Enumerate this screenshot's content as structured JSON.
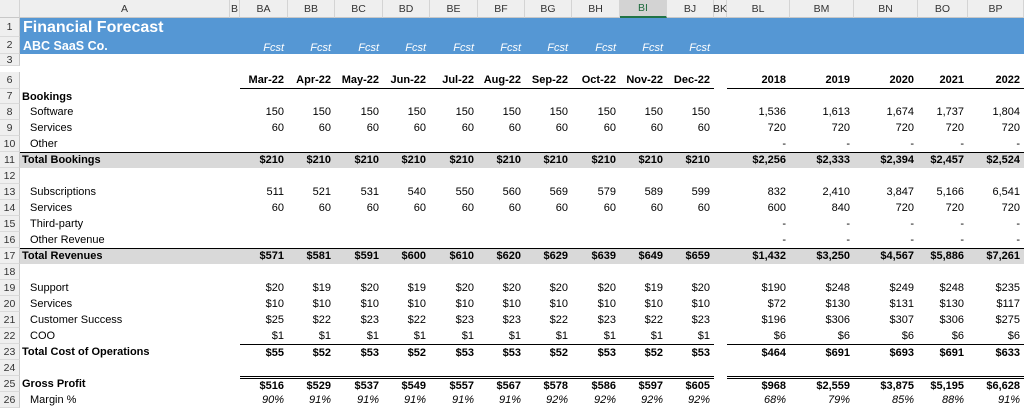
{
  "column_headers": [
    "A",
    "B",
    "BA",
    "BB",
    "BC",
    "BD",
    "BE",
    "BF",
    "BG",
    "BH",
    "BI",
    "BJ",
    "BK",
    "BL",
    "BM",
    "BN",
    "BO",
    "BP"
  ],
  "selected_column": "BI",
  "row_numbers": [
    1,
    2,
    3,
    6,
    7,
    8,
    9,
    10,
    11,
    12,
    13,
    14,
    15,
    16,
    17,
    18,
    19,
    20,
    21,
    22,
    23,
    24,
    25,
    26
  ],
  "header": {
    "title": "Financial Forecast",
    "company": "ABC SaaS Co.",
    "fcst": [
      "Fcst",
      "Fcst",
      "Fcst",
      "Fcst",
      "Fcst",
      "Fcst",
      "Fcst",
      "Fcst",
      "Fcst",
      "Fcst"
    ]
  },
  "period_headers": {
    "months": [
      "Mar-22",
      "Apr-22",
      "May-22",
      "Jun-22",
      "Jul-22",
      "Aug-22",
      "Sep-22",
      "Oct-22",
      "Nov-22",
      "Dec-22"
    ],
    "years": [
      "2018",
      "2019",
      "2020",
      "2021",
      "2022"
    ]
  },
  "rows": [
    {
      "row": 7,
      "label": "Bookings",
      "style": "section",
      "months": [],
      "years": []
    },
    {
      "row": 8,
      "label": "Software",
      "style": "item",
      "months": [
        "150",
        "150",
        "150",
        "150",
        "150",
        "150",
        "150",
        "150",
        "150",
        "150"
      ],
      "years": [
        "1,536",
        "1,613",
        "1,674",
        "1,737",
        "1,804"
      ]
    },
    {
      "row": 9,
      "label": "Services",
      "style": "item",
      "months": [
        "60",
        "60",
        "60",
        "60",
        "60",
        "60",
        "60",
        "60",
        "60",
        "60"
      ],
      "years": [
        "720",
        "720",
        "720",
        "720",
        "720"
      ]
    },
    {
      "row": 10,
      "label": "Other",
      "style": "item",
      "months": [],
      "years": [
        "-",
        "-",
        "-",
        "-",
        "-"
      ]
    },
    {
      "row": 11,
      "label": "Total Bookings",
      "style": "total",
      "months": [
        "$210",
        "$210",
        "$210",
        "$210",
        "$210",
        "$210",
        "$210",
        "$210",
        "$210",
        "$210"
      ],
      "years": [
        "$2,256",
        "$2,333",
        "$2,394",
        "$2,457",
        "$2,524"
      ]
    },
    {
      "row": 13,
      "label": "Subscriptions",
      "style": "item",
      "months": [
        "511",
        "521",
        "531",
        "540",
        "550",
        "560",
        "569",
        "579",
        "589",
        "599"
      ],
      "years": [
        "832",
        "2,410",
        "3,847",
        "5,166",
        "6,541"
      ]
    },
    {
      "row": 14,
      "label": "Services",
      "style": "item",
      "months": [
        "60",
        "60",
        "60",
        "60",
        "60",
        "60",
        "60",
        "60",
        "60",
        "60"
      ],
      "years": [
        "600",
        "840",
        "720",
        "720",
        "720"
      ]
    },
    {
      "row": 15,
      "label": "Third-party",
      "style": "item",
      "months": [],
      "years": [
        "-",
        "-",
        "-",
        "-",
        "-"
      ]
    },
    {
      "row": 16,
      "label": "Other Revenue",
      "style": "item",
      "months": [],
      "years": [
        "-",
        "-",
        "-",
        "-",
        "-"
      ]
    },
    {
      "row": 17,
      "label": "Total Revenues",
      "style": "total",
      "months": [
        "$571",
        "$581",
        "$591",
        "$600",
        "$610",
        "$620",
        "$629",
        "$639",
        "$649",
        "$659"
      ],
      "years": [
        "$1,432",
        "$3,250",
        "$4,567",
        "$5,886",
        "$7,261"
      ]
    },
    {
      "row": 19,
      "label": "Support",
      "style": "item",
      "months": [
        "$20",
        "$19",
        "$20",
        "$19",
        "$20",
        "$20",
        "$20",
        "$20",
        "$19",
        "$20"
      ],
      "years": [
        "$190",
        "$248",
        "$249",
        "$248",
        "$235"
      ]
    },
    {
      "row": 20,
      "label": "Services",
      "style": "item",
      "months": [
        "$10",
        "$10",
        "$10",
        "$10",
        "$10",
        "$10",
        "$10",
        "$10",
        "$10",
        "$10"
      ],
      "years": [
        "$72",
        "$130",
        "$131",
        "$130",
        "$117"
      ]
    },
    {
      "row": 21,
      "label": "Customer Success",
      "style": "item",
      "months": [
        "$25",
        "$22",
        "$23",
        "$22",
        "$23",
        "$23",
        "$22",
        "$23",
        "$22",
        "$23"
      ],
      "years": [
        "$196",
        "$306",
        "$307",
        "$306",
        "$275"
      ]
    },
    {
      "row": 22,
      "label": "COO",
      "style": "item",
      "months": [
        "$1",
        "$1",
        "$1",
        "$1",
        "$1",
        "$1",
        "$1",
        "$1",
        "$1",
        "$1"
      ],
      "years": [
        "$6",
        "$6",
        "$6",
        "$6",
        "$6"
      ]
    },
    {
      "row": 23,
      "label": "Total Cost of Operations",
      "style": "subtotal",
      "months": [
        "$55",
        "$52",
        "$53",
        "$52",
        "$53",
        "$53",
        "$52",
        "$53",
        "$52",
        "$53"
      ],
      "years": [
        "$464",
        "$691",
        "$693",
        "$691",
        "$633"
      ]
    },
    {
      "row": 25,
      "label": "Gross Profit",
      "style": "grand",
      "months": [
        "$516",
        "$529",
        "$537",
        "$549",
        "$557",
        "$567",
        "$578",
        "$586",
        "$597",
        "$605"
      ],
      "years": [
        "$968",
        "$2,559",
        "$3,875",
        "$5,195",
        "$6,628"
      ]
    },
    {
      "row": 26,
      "label": "Margin %",
      "style": "percent",
      "months": [
        "90%",
        "91%",
        "91%",
        "91%",
        "91%",
        "91%",
        "92%",
        "92%",
        "92%",
        "92%"
      ],
      "years": [
        "68%",
        "79%",
        "85%",
        "88%",
        "91%"
      ]
    }
  ]
}
